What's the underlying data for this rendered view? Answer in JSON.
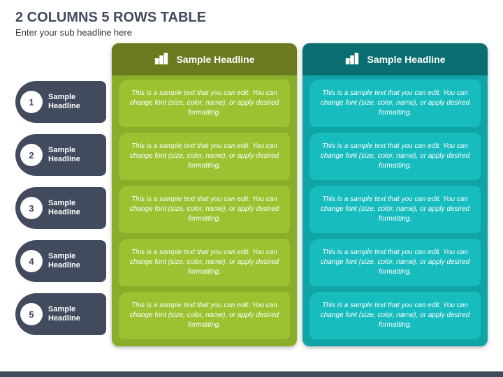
{
  "title": "2 COLUMNS 5 ROWS TABLE",
  "subtitle": "Enter your sub headline here",
  "colors": {
    "title": "#424a5e",
    "row_label_bg": "#424a5e",
    "row_label_text": "#ffffff",
    "footer_bar": "#424a5e",
    "background": "#ffffff"
  },
  "row_labels": [
    {
      "num": "1",
      "text": "Sample Headline"
    },
    {
      "num": "2",
      "text": "Sample Headline"
    },
    {
      "num": "3",
      "text": "Sample Headline"
    },
    {
      "num": "4",
      "text": "Sample Headline"
    },
    {
      "num": "5",
      "text": "Sample Headline"
    }
  ],
  "columns": [
    {
      "header": "Sample Headline",
      "header_bg": "#6a7a1f",
      "body_bg": "#8aad2a",
      "cell_bg": "#9cc232",
      "icon": "bar-chart",
      "cells": [
        "This is a sample text that you can edit. You can change font (size, color, name), or apply desired formatting.",
        "This is a sample text that you can edit. You can change font (size, color, name), or apply desired formatting.",
        "This is a sample text that you can edit. You can change font (size, color, name), or apply desired formatting.",
        "This is a sample text that you can edit. You can change font (size, color, name), or apply desired formatting.",
        "This is a sample text that you can edit. You can change font (size, color, name), or apply desired formatting."
      ]
    },
    {
      "header": "Sample Headline",
      "header_bg": "#0a6e70",
      "body_bg": "#0fa5a7",
      "cell_bg": "#17bcbe",
      "icon": "bar-chart",
      "cells": [
        "This is a sample text that you can edit. You can change font (size, color, name), or apply desired formatting.",
        "This is a sample text that you can edit. You can change font (size, color, name), or apply desired formatting.",
        "This is a sample text that you can edit. You can change font (size, color, name), or apply desired formatting.",
        "This is a sample text that you can edit. You can change font (size, color, name), or apply desired formatting.",
        "This is a sample text that you can edit. You can change font (size, color, name), or apply desired formatting."
      ]
    }
  ]
}
